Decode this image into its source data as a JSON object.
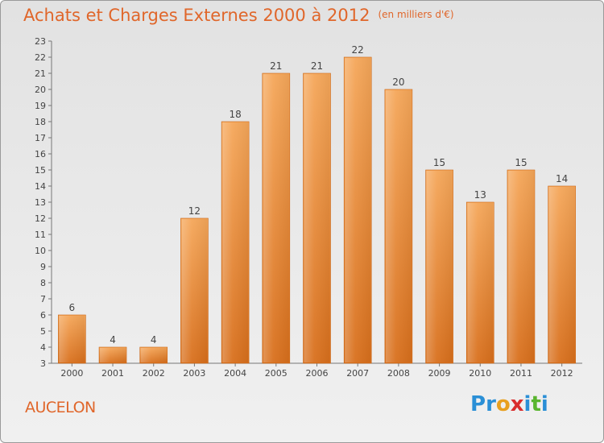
{
  "title": "Achats et Charges Externes 2000 à 2012",
  "subtitle": "(en milliers d'€)",
  "town": "AUCELON",
  "logo": {
    "letters": [
      "P",
      "r",
      "o",
      "x",
      "i",
      "t",
      "i"
    ],
    "colors": [
      "#2a8fd6",
      "#2a8fd6",
      "#e8a020",
      "#d92d2d",
      "#2a8fd6",
      "#59b52e",
      "#2a8fd6"
    ]
  },
  "colors": {
    "bar_top": "#f5a75a",
    "bar_bottom": "#d86f1c",
    "accent": "#e0662a"
  },
  "chart_data": {
    "type": "bar",
    "categories": [
      "2000",
      "2001",
      "2002",
      "2003",
      "2004",
      "2005",
      "2006",
      "2007",
      "2008",
      "2009",
      "2010",
      "2011",
      "2012"
    ],
    "values": [
      6,
      4,
      4,
      12,
      18,
      21,
      21,
      22,
      20,
      15,
      13,
      15,
      14
    ],
    "ylim": [
      3,
      23
    ],
    "yticks": [
      3,
      4,
      5,
      6,
      7,
      8,
      9,
      10,
      11,
      12,
      13,
      14,
      15,
      16,
      17,
      18,
      19,
      20,
      21,
      22,
      23
    ],
    "grid": false,
    "legend": "none"
  }
}
